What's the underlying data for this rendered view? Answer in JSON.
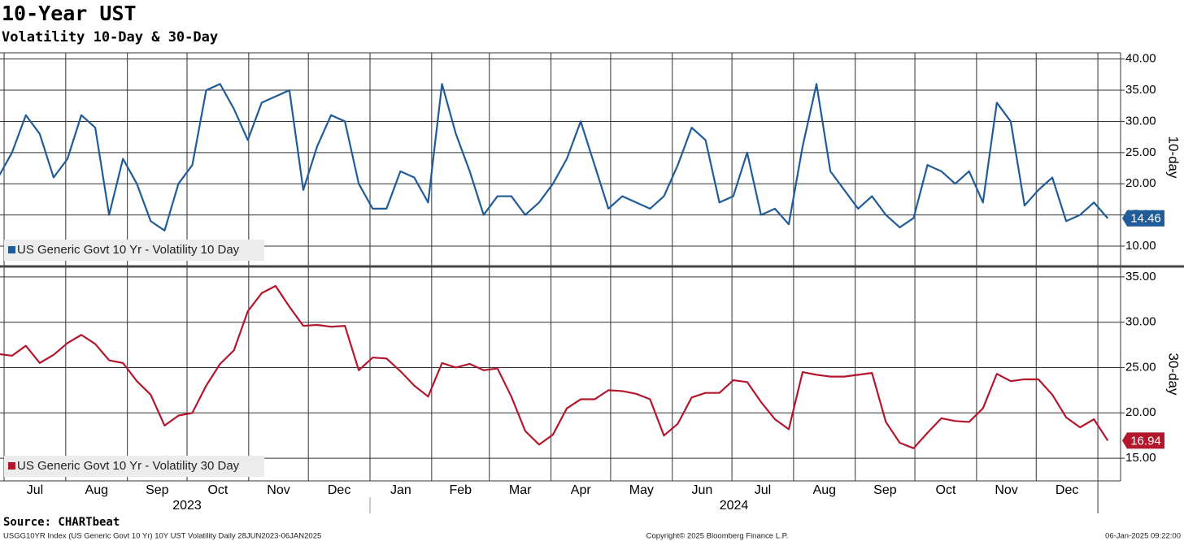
{
  "title": "10-Year UST",
  "subtitle": "Volatility 10-Day & 30-Day",
  "source": "Source: CHARTbeat",
  "footer_left": "USGG10YR Index (US Generic Govt 10 Yr) 10Y UST Volatility  Daily 28JUN2023-06JAN2025",
  "footer_center": "Copyright© 2025 Bloomberg Finance L.P.",
  "footer_right": "06-Jan-2025 09:22:00",
  "x_axis": {
    "xlim": [
      "28JUN2023",
      "06JAN2025"
    ],
    "months": [
      "Jul",
      "Aug",
      "Sep",
      "Oct",
      "Nov",
      "Dec",
      "Jan",
      "Feb",
      "Mar",
      "Apr",
      "May",
      "Jun",
      "Jul",
      "Aug",
      "Sep",
      "Oct",
      "Nov",
      "Dec"
    ],
    "years": [
      "2023",
      "2024"
    ]
  },
  "chart_data": [
    {
      "type": "line",
      "y_label": "10-day",
      "ylim": [
        7,
        41
      ],
      "yticks": [
        {
          "value": 10,
          "label": "10.00"
        },
        {
          "value": 15,
          "label": "15.00"
        },
        {
          "value": 20,
          "label": "20.00"
        },
        {
          "value": 25,
          "label": "25.00"
        },
        {
          "value": 30,
          "label": "30.00"
        },
        {
          "value": 35,
          "label": "35.00"
        },
        {
          "value": 40,
          "label": "40.00"
        }
      ],
      "grid": true,
      "series": [
        {
          "name": "US Generic Govt 10 Yr - Volatility 10 Day",
          "color": "#1f5c99",
          "values": [
            21,
            25,
            31,
            28,
            21,
            24,
            31,
            29,
            15,
            24,
            20,
            14,
            12.5,
            20,
            23,
            35,
            36,
            32,
            27,
            33,
            34,
            35,
            19,
            26,
            31,
            30,
            20,
            16,
            16,
            22,
            21,
            17,
            36,
            28,
            22,
            15,
            18,
            18,
            15,
            17,
            20,
            24,
            30,
            23,
            16,
            18,
            17,
            16,
            18,
            23,
            29,
            27,
            17,
            18,
            25,
            15,
            16,
            13.5,
            26,
            36,
            22,
            19,
            16,
            18,
            15,
            13,
            14.5,
            23,
            22,
            20,
            22,
            17,
            33,
            30,
            16.5,
            19,
            21,
            14,
            15,
            17,
            14.46
          ]
        }
      ]
    },
    {
      "type": "line",
      "y_label": "30-day",
      "ylim": [
        12.5,
        35.7
      ],
      "yticks": [
        {
          "value": 15,
          "label": "15.00"
        },
        {
          "value": 20,
          "label": "20.00"
        },
        {
          "value": 25,
          "label": "25.00"
        },
        {
          "value": 30,
          "label": "30.00"
        },
        {
          "value": 35,
          "label": "35.00"
        }
      ],
      "grid": true,
      "series": [
        {
          "name": "US Generic Govt 10 Yr - Volatility 30 Day",
          "color": "#b3172b",
          "values": [
            26.5,
            26.3,
            27.4,
            25.5,
            26.4,
            27.7,
            28.6,
            27.6,
            25.8,
            25.5,
            23.5,
            22,
            18.6,
            19.7,
            20,
            23,
            25.4,
            26.9,
            31.2,
            33.2,
            34,
            31.7,
            29.6,
            29.7,
            29.5,
            29.6,
            24.7,
            26.1,
            26,
            24.6,
            23,
            21.8,
            25.5,
            25,
            25.4,
            24.7,
            24.9,
            21.8,
            18,
            16.5,
            17.6,
            20.5,
            21.5,
            21.5,
            22.5,
            22.4,
            22.1,
            21.5,
            17.5,
            18.8,
            21.7,
            22.2,
            22.2,
            23.6,
            23.4,
            21.2,
            19.3,
            18.2,
            24.5,
            24.2,
            24,
            24,
            24.2,
            24.4,
            19,
            16.7,
            16.1,
            17.8,
            19.4,
            19.1,
            19,
            20.5,
            24.3,
            23.5,
            23.7,
            23.7,
            22,
            19.5,
            18.4,
            19.3,
            16.94
          ]
        }
      ]
    }
  ]
}
